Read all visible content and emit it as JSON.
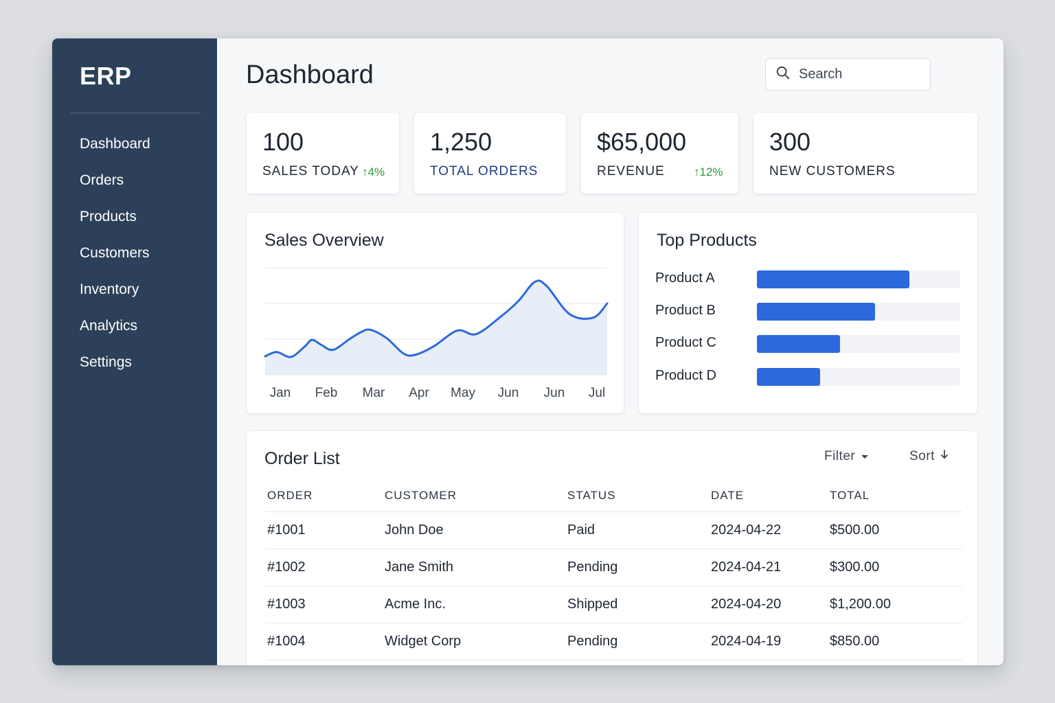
{
  "app": {
    "brand": "ERP"
  },
  "sidebar": {
    "items": [
      {
        "label": "Dashboard"
      },
      {
        "label": "Orders"
      },
      {
        "label": "Products"
      },
      {
        "label": "Customers"
      },
      {
        "label": "Inventory"
      },
      {
        "label": "Analytics"
      },
      {
        "label": "Settings"
      }
    ]
  },
  "header": {
    "title": "Dashboard",
    "search_placeholder": "Search",
    "search_icon": "search-icon",
    "avatar_icon": "user-avatar-icon"
  },
  "stats": [
    {
      "value": "100",
      "label": "SALES TODAY",
      "delta": "↑4%"
    },
    {
      "value": "1,250",
      "label": "TOTAL ORDERS",
      "delta": ""
    },
    {
      "value": "$65,000",
      "label": "REVENUE",
      "delta": "↑12%"
    },
    {
      "value": "300",
      "label": "NEW CUSTOMERS",
      "delta": ""
    }
  ],
  "sales_overview": {
    "title": "Sales Overview"
  },
  "chart_data": {
    "type": "area",
    "title": "Sales Overview",
    "categories": [
      "Jan",
      "Feb",
      "Mar",
      "Apr",
      "May",
      "Jun",
      "Jun",
      "Jul"
    ],
    "series": [
      {
        "name": "Sales",
        "x": [
          0,
          0.25,
          0.55,
          0.85,
          1.0,
          1.2,
          1.45,
          1.8,
          2.05,
          2.25,
          2.6,
          2.95,
          3.2,
          3.6,
          4.1,
          4.5,
          5.0,
          5.4,
          5.75,
          6.0,
          6.5,
          7.0,
          7.3
        ],
        "values": [
          26,
          32,
          25,
          40,
          49,
          42,
          35,
          50,
          60,
          63,
          51,
          30,
          28,
          40,
          62,
          57,
          80,
          103,
          130,
          125,
          85,
          80,
          100
        ]
      }
    ],
    "ylim": [
      0,
      150
    ],
    "grid": true,
    "xlabel": "",
    "ylabel": ""
  },
  "top_products": {
    "title": "Top Products",
    "items": [
      {
        "label": "Product A",
        "value": 0.75
      },
      {
        "label": "Product B",
        "value": 0.58
      },
      {
        "label": "Product C",
        "value": 0.41
      },
      {
        "label": "Product D",
        "value": 0.31
      }
    ]
  },
  "orders": {
    "title": "Order List",
    "filter_label": "Filter",
    "sort_label": "Sort",
    "columns": [
      "ORDER",
      "CUSTOMER",
      "STATUS",
      "DATE",
      "TOTAL"
    ],
    "rows": [
      [
        "#1001",
        "John Doe",
        "Paid",
        "2024-04-22",
        "$500.00"
      ],
      [
        "#1002",
        "Jane Smith",
        "Pending",
        "2024-04-21",
        "$300.00"
      ],
      [
        "#1003",
        "Acme Inc.",
        "Shipped",
        "2024-04-20",
        "$1,200.00"
      ],
      [
        "#1004",
        "Widget Corp",
        "Pending",
        "2024-04-19",
        "$850.00"
      ]
    ]
  },
  "colors": {
    "sidebar": "#2c4059",
    "accent": "#2b69dd",
    "positive": "#2e9a3a"
  }
}
